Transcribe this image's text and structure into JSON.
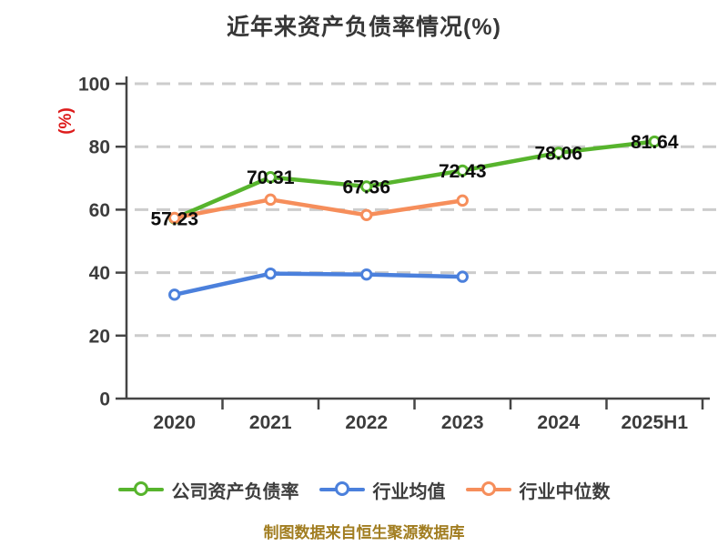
{
  "chart_data": {
    "type": "line",
    "title": "近年来资产负债率情况(%)",
    "ylabel": "(%)",
    "ylim": [
      0,
      100
    ],
    "yticks": [
      0,
      20,
      40,
      60,
      80,
      100
    ],
    "grid": "horizontal-dashed",
    "legend_position": "bottom",
    "categories": [
      "2020",
      "2021",
      "2022",
      "2023",
      "2024",
      "2025H1"
    ],
    "series": [
      {
        "id": "company-debt-ratio",
        "name": "公司资产负债率",
        "color": "#57b42d",
        "values": [
          57.23,
          70.31,
          67.36,
          72.43,
          78.06,
          81.64
        ],
        "data_labels": [
          "57.23",
          "70.31",
          "67.36",
          "72.43",
          "78.06",
          "81.64"
        ]
      },
      {
        "id": "industry-average",
        "name": "行业均值",
        "color": "#4b80dc",
        "values": [
          33.0,
          39.7,
          39.4,
          38.7
        ]
      },
      {
        "id": "industry-median",
        "name": "行业中位数",
        "color": "#f68e5b",
        "values": [
          57.4,
          63.2,
          58.3,
          62.9
        ]
      }
    ],
    "style": {
      "axis_color": "#454545",
      "grid_color": "#cccccc",
      "tick_label_color": "#3c3c3c",
      "data_label_color": "#0d0d0d",
      "title_color": "#373737",
      "ylabel_color": "#dd1b1b",
      "marker_fill": "#ffffff"
    }
  },
  "footer": {
    "text": "制图数据来自恒生聚源数据库",
    "color": "#a17d20"
  }
}
